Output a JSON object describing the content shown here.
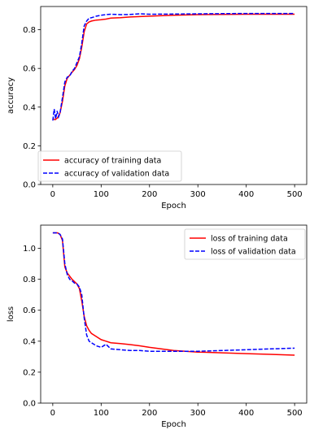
{
  "chart_data": [
    {
      "type": "line",
      "title": "",
      "xlabel": "Epoch",
      "ylabel": "accuracy",
      "xlim": [
        -25,
        525
      ],
      "ylim": [
        0.0,
        0.92
      ],
      "xticks": [
        0,
        100,
        200,
        300,
        400,
        500
      ],
      "yticks": [
        0.0,
        0.2,
        0.4,
        0.6,
        0.8
      ],
      "ytick_labels": [
        "0.0",
        "0.2",
        "0.4",
        "0.6",
        "0.8"
      ],
      "grid": false,
      "legend_position": "bottom-left",
      "series": [
        {
          "name": "accuracy of training data",
          "color": "#ff0000",
          "style": "solid",
          "x": [
            0,
            5,
            10,
            15,
            20,
            25,
            30,
            35,
            40,
            45,
            50,
            55,
            60,
            65,
            70,
            75,
            80,
            90,
            100,
            110,
            120,
            140,
            160,
            180,
            200,
            250,
            300,
            350,
            400,
            450,
            500
          ],
          "y": [
            0.34,
            0.335,
            0.345,
            0.37,
            0.43,
            0.51,
            0.55,
            0.565,
            0.58,
            0.595,
            0.615,
            0.65,
            0.71,
            0.79,
            0.83,
            0.84,
            0.845,
            0.85,
            0.852,
            0.855,
            0.86,
            0.862,
            0.866,
            0.868,
            0.87,
            0.875,
            0.878,
            0.879,
            0.88,
            0.88,
            0.88
          ]
        },
        {
          "name": "accuracy of validation data",
          "color": "#0000ff",
          "style": "dashed",
          "x": [
            0,
            3,
            6,
            9,
            12,
            15,
            20,
            25,
            30,
            35,
            40,
            45,
            50,
            55,
            60,
            65,
            70,
            75,
            80,
            90,
            100,
            110,
            120,
            140,
            160,
            180,
            200,
            250,
            300,
            350,
            400,
            450,
            500
          ],
          "y": [
            0.33,
            0.39,
            0.34,
            0.38,
            0.35,
            0.37,
            0.45,
            0.53,
            0.555,
            0.56,
            0.585,
            0.6,
            0.63,
            0.66,
            0.73,
            0.82,
            0.845,
            0.86,
            0.862,
            0.87,
            0.875,
            0.878,
            0.88,
            0.878,
            0.879,
            0.882,
            0.88,
            0.881,
            0.882,
            0.883,
            0.884,
            0.884,
            0.884
          ]
        }
      ]
    },
    {
      "type": "line",
      "title": "",
      "xlabel": "Epoch",
      "ylabel": "loss",
      "xlim": [
        -25,
        525
      ],
      "ylim": [
        0.0,
        1.15
      ],
      "xticks": [
        0,
        100,
        200,
        300,
        400,
        500
      ],
      "yticks": [
        0.0,
        0.2,
        0.4,
        0.6,
        0.8,
        1.0
      ],
      "ytick_labels": [
        "0.0",
        "0.2",
        "0.4",
        "0.6",
        "0.8",
        "1.0"
      ],
      "grid": false,
      "legend_position": "top-right",
      "series": [
        {
          "name": "loss of training data",
          "color": "#ff0000",
          "style": "solid",
          "x": [
            0,
            5,
            10,
            15,
            20,
            25,
            30,
            35,
            40,
            45,
            50,
            55,
            60,
            65,
            70,
            75,
            80,
            90,
            100,
            120,
            140,
            160,
            180,
            200,
            250,
            300,
            350,
            400,
            450,
            500
          ],
          "y": [
            1.1,
            1.1,
            1.1,
            1.09,
            1.05,
            0.88,
            0.84,
            0.82,
            0.8,
            0.785,
            0.77,
            0.74,
            0.66,
            0.56,
            0.5,
            0.47,
            0.45,
            0.43,
            0.41,
            0.39,
            0.385,
            0.378,
            0.37,
            0.36,
            0.34,
            0.33,
            0.325,
            0.32,
            0.315,
            0.31
          ]
        },
        {
          "name": "loss of validation data",
          "color": "#0000ff",
          "style": "dashed",
          "x": [
            0,
            5,
            10,
            15,
            20,
            25,
            30,
            35,
            40,
            45,
            50,
            55,
            60,
            65,
            70,
            75,
            80,
            90,
            100,
            110,
            120,
            140,
            160,
            180,
            200,
            250,
            300,
            350,
            400,
            450,
            500
          ],
          "y": [
            1.1,
            1.1,
            1.1,
            1.09,
            1.06,
            0.9,
            0.83,
            0.8,
            0.79,
            0.775,
            0.77,
            0.75,
            0.7,
            0.55,
            0.44,
            0.4,
            0.39,
            0.37,
            0.36,
            0.38,
            0.35,
            0.345,
            0.34,
            0.34,
            0.335,
            0.335,
            0.335,
            0.34,
            0.345,
            0.35,
            0.355
          ]
        }
      ]
    }
  ]
}
